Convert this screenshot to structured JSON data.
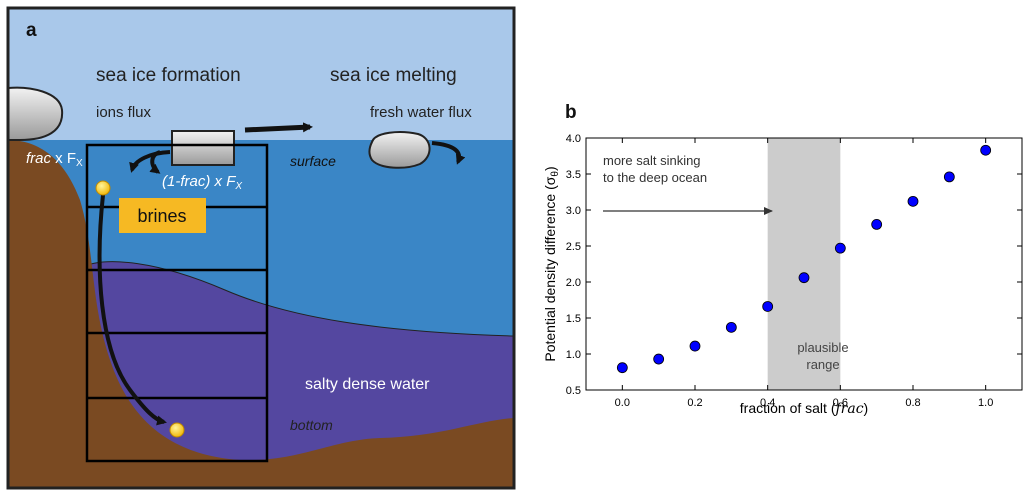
{
  "panel_a": {
    "label": "a",
    "sea_ice_formation": "sea ice formation",
    "sea_ice_melting": "sea ice melting",
    "ions_flux": "ions flux",
    "fresh_water_flux": "fresh water flux",
    "surface": "surface",
    "frac_label": "frac",
    "frac_times": " x F",
    "frac_sub": "X",
    "one_minus_frac_prefix": "(1-",
    "one_minus_frac_mid": "frac",
    "one_minus_frac_suffix": ") x F",
    "one_minus_frac_sub": "X",
    "brines": "brines",
    "salty_dense_water": "salty dense water",
    "bottom": "bottom",
    "colors": {
      "sky": "#a9c8ea",
      "ocean": "#3a86c6",
      "dense_water": "#5447a0",
      "land": "#7a4a22",
      "brine_box": "#f6b923",
      "brine_dot": "#f5c518",
      "ice": "#d4d4d4"
    }
  },
  "panel_b": {
    "label": "b",
    "annotation_line1": "more salt sinking",
    "annotation_line2": "to the deep ocean",
    "range_line1": "plausible",
    "range_line2": "range"
  },
  "chart_data": {
    "type": "scatter",
    "xlabel": "fraction of salt (",
    "xlabel_var": "frac",
    "xlabel_end": ")",
    "ylabel": "Potential density difference (σ",
    "ylabel_sub": "θ",
    "ylabel_end": ")",
    "xlim": [
      -0.1,
      1.1
    ],
    "ylim": [
      0.5,
      4.0
    ],
    "xticks": [
      0.0,
      0.2,
      0.4,
      0.6,
      0.8,
      1.0
    ],
    "xtick_labels": [
      "0.0",
      "0.2",
      "0.4",
      "0.6",
      "0.8",
      "1.0"
    ],
    "yticks": [
      0.5,
      1.0,
      1.5,
      2.0,
      2.5,
      3.0,
      3.5,
      4.0
    ],
    "ytick_labels": [
      "0.5",
      "1.0",
      "1.5",
      "2.0",
      "2.5",
      "3.0",
      "3.5",
      "4.0"
    ],
    "shaded_range": [
      0.4,
      0.6
    ],
    "marker_color": "#0000ff",
    "shade_color": "#cccccc",
    "x": [
      0.0,
      0.1,
      0.2,
      0.3,
      0.4,
      0.5,
      0.6,
      0.7,
      0.8,
      0.9,
      1.0
    ],
    "y": [
      0.81,
      0.93,
      1.11,
      1.37,
      1.66,
      2.06,
      2.47,
      2.8,
      3.12,
      3.46,
      3.83
    ],
    "grid": false
  }
}
